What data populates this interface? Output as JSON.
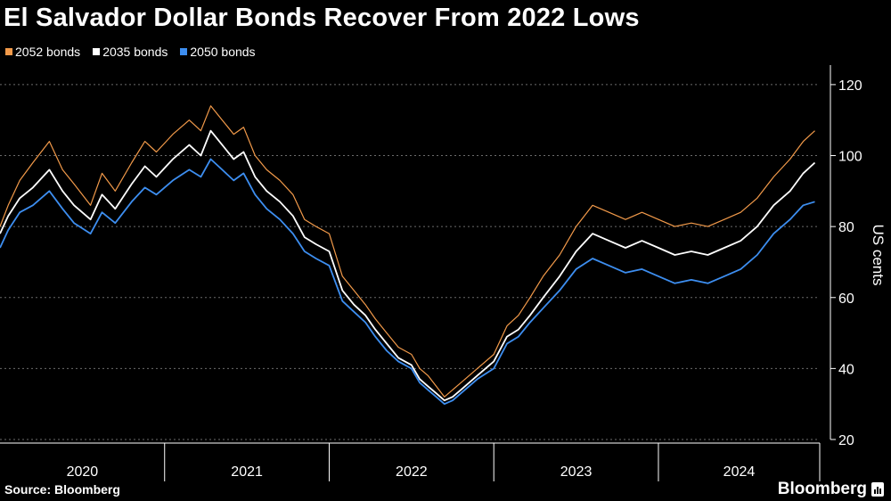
{
  "chart_data": {
    "type": "line",
    "title": "El Salvador Dollar Bonds Recover From 2022 Lows",
    "ylabel": "US cents",
    "xlabel": "",
    "ylim": [
      20,
      125
    ],
    "yticks": [
      "20",
      "40",
      "60",
      "80",
      "100",
      "120"
    ],
    "ytick_values": [
      20,
      40,
      60,
      80,
      100,
      120
    ],
    "years": [
      "2020",
      "2021",
      "2022",
      "2023",
      "2024"
    ],
    "xlim": [
      2020.0,
      2024.98
    ],
    "grid": true,
    "legend_position": "top-left",
    "series": [
      {
        "name": "2052 bonds",
        "color": "#f29a4a",
        "points": [
          [
            2020.0,
            80
          ],
          [
            2020.05,
            86
          ],
          [
            2020.12,
            93
          ],
          [
            2020.2,
            98
          ],
          [
            2020.3,
            104
          ],
          [
            2020.38,
            96
          ],
          [
            2020.45,
            92
          ],
          [
            2020.55,
            86
          ],
          [
            2020.62,
            95
          ],
          [
            2020.7,
            90
          ],
          [
            2020.8,
            98
          ],
          [
            2020.88,
            104
          ],
          [
            2020.95,
            101
          ],
          [
            2021.05,
            106
          ],
          [
            2021.15,
            110
          ],
          [
            2021.22,
            107
          ],
          [
            2021.28,
            114
          ],
          [
            2021.35,
            110
          ],
          [
            2021.42,
            106
          ],
          [
            2021.48,
            108
          ],
          [
            2021.55,
            100
          ],
          [
            2021.62,
            96
          ],
          [
            2021.7,
            93
          ],
          [
            2021.78,
            89
          ],
          [
            2021.85,
            82
          ],
          [
            2021.92,
            80
          ],
          [
            2022.0,
            78
          ],
          [
            2022.08,
            66
          ],
          [
            2022.15,
            62
          ],
          [
            2022.22,
            58
          ],
          [
            2022.28,
            54
          ],
          [
            2022.35,
            50
          ],
          [
            2022.42,
            46
          ],
          [
            2022.5,
            44
          ],
          [
            2022.55,
            40
          ],
          [
            2022.6,
            38
          ],
          [
            2022.65,
            35
          ],
          [
            2022.7,
            32
          ],
          [
            2022.75,
            34
          ],
          [
            2022.8,
            36
          ],
          [
            2022.9,
            40
          ],
          [
            2023.0,
            44
          ],
          [
            2023.08,
            52
          ],
          [
            2023.15,
            55
          ],
          [
            2023.22,
            60
          ],
          [
            2023.3,
            66
          ],
          [
            2023.4,
            72
          ],
          [
            2023.5,
            80
          ],
          [
            2023.6,
            86
          ],
          [
            2023.7,
            84
          ],
          [
            2023.8,
            82
          ],
          [
            2023.9,
            84
          ],
          [
            2024.0,
            82
          ],
          [
            2024.1,
            80
          ],
          [
            2024.2,
            81
          ],
          [
            2024.3,
            80
          ],
          [
            2024.4,
            82
          ],
          [
            2024.5,
            84
          ],
          [
            2024.6,
            88
          ],
          [
            2024.7,
            94
          ],
          [
            2024.8,
            99
          ],
          [
            2024.88,
            104
          ],
          [
            2024.95,
            107
          ]
        ]
      },
      {
        "name": "2035 bonds",
        "color": "#ffffff",
        "points": [
          [
            2020.0,
            78
          ],
          [
            2020.05,
            83
          ],
          [
            2020.12,
            88
          ],
          [
            2020.2,
            91
          ],
          [
            2020.3,
            96
          ],
          [
            2020.38,
            90
          ],
          [
            2020.45,
            86
          ],
          [
            2020.55,
            82
          ],
          [
            2020.62,
            89
          ],
          [
            2020.7,
            85
          ],
          [
            2020.8,
            92
          ],
          [
            2020.88,
            97
          ],
          [
            2020.95,
            94
          ],
          [
            2021.05,
            99
          ],
          [
            2021.15,
            103
          ],
          [
            2021.22,
            100
          ],
          [
            2021.28,
            107
          ],
          [
            2021.35,
            103
          ],
          [
            2021.42,
            99
          ],
          [
            2021.48,
            101
          ],
          [
            2021.55,
            94
          ],
          [
            2021.62,
            90
          ],
          [
            2021.7,
            87
          ],
          [
            2021.78,
            83
          ],
          [
            2021.85,
            77
          ],
          [
            2021.92,
            75
          ],
          [
            2022.0,
            73
          ],
          [
            2022.08,
            62
          ],
          [
            2022.15,
            58
          ],
          [
            2022.22,
            55
          ],
          [
            2022.28,
            51
          ],
          [
            2022.35,
            47
          ],
          [
            2022.42,
            43
          ],
          [
            2022.5,
            41
          ],
          [
            2022.55,
            37
          ],
          [
            2022.6,
            35
          ],
          [
            2022.65,
            33
          ],
          [
            2022.7,
            31
          ],
          [
            2022.75,
            32
          ],
          [
            2022.8,
            34
          ],
          [
            2022.9,
            38
          ],
          [
            2023.0,
            42
          ],
          [
            2023.08,
            49
          ],
          [
            2023.15,
            51
          ],
          [
            2023.22,
            55
          ],
          [
            2023.3,
            60
          ],
          [
            2023.4,
            66
          ],
          [
            2023.5,
            73
          ],
          [
            2023.6,
            78
          ],
          [
            2023.7,
            76
          ],
          [
            2023.8,
            74
          ],
          [
            2023.9,
            76
          ],
          [
            2024.0,
            74
          ],
          [
            2024.1,
            72
          ],
          [
            2024.2,
            73
          ],
          [
            2024.3,
            72
          ],
          [
            2024.4,
            74
          ],
          [
            2024.5,
            76
          ],
          [
            2024.6,
            80
          ],
          [
            2024.7,
            86
          ],
          [
            2024.8,
            90
          ],
          [
            2024.88,
            95
          ],
          [
            2024.95,
            98
          ]
        ]
      },
      {
        "name": "2050 bonds",
        "color": "#3d8ef0",
        "points": [
          [
            2020.0,
            74
          ],
          [
            2020.05,
            79
          ],
          [
            2020.12,
            84
          ],
          [
            2020.2,
            86
          ],
          [
            2020.3,
            90
          ],
          [
            2020.38,
            85
          ],
          [
            2020.45,
            81
          ],
          [
            2020.55,
            78
          ],
          [
            2020.62,
            84
          ],
          [
            2020.7,
            81
          ],
          [
            2020.8,
            87
          ],
          [
            2020.88,
            91
          ],
          [
            2020.95,
            89
          ],
          [
            2021.05,
            93
          ],
          [
            2021.15,
            96
          ],
          [
            2021.22,
            94
          ],
          [
            2021.28,
            99
          ],
          [
            2021.35,
            96
          ],
          [
            2021.42,
            93
          ],
          [
            2021.48,
            95
          ],
          [
            2021.55,
            89
          ],
          [
            2021.62,
            85
          ],
          [
            2021.7,
            82
          ],
          [
            2021.78,
            78
          ],
          [
            2021.85,
            73
          ],
          [
            2021.92,
            71
          ],
          [
            2022.0,
            69
          ],
          [
            2022.08,
            59
          ],
          [
            2022.15,
            56
          ],
          [
            2022.22,
            53
          ],
          [
            2022.28,
            49
          ],
          [
            2022.35,
            45
          ],
          [
            2022.42,
            42
          ],
          [
            2022.5,
            40
          ],
          [
            2022.55,
            36
          ],
          [
            2022.6,
            34
          ],
          [
            2022.65,
            32
          ],
          [
            2022.7,
            30
          ],
          [
            2022.75,
            31
          ],
          [
            2022.8,
            33
          ],
          [
            2022.9,
            37
          ],
          [
            2023.0,
            40
          ],
          [
            2023.08,
            47
          ],
          [
            2023.15,
            49
          ],
          [
            2023.22,
            53
          ],
          [
            2023.3,
            57
          ],
          [
            2023.4,
            62
          ],
          [
            2023.5,
            68
          ],
          [
            2023.6,
            71
          ],
          [
            2023.7,
            69
          ],
          [
            2023.8,
            67
          ],
          [
            2023.9,
            68
          ],
          [
            2024.0,
            66
          ],
          [
            2024.1,
            64
          ],
          [
            2024.2,
            65
          ],
          [
            2024.3,
            64
          ],
          [
            2024.4,
            66
          ],
          [
            2024.5,
            68
          ],
          [
            2024.6,
            72
          ],
          [
            2024.7,
            78
          ],
          [
            2024.8,
            82
          ],
          [
            2024.88,
            86
          ],
          [
            2024.95,
            87
          ]
        ]
      }
    ]
  },
  "header": {
    "title": "El Salvador Dollar Bonds Recover From 2022 Lows"
  },
  "legend": [
    {
      "label": "2052 bonds",
      "color": "#f29a4a"
    },
    {
      "label": "2035 bonds",
      "color": "#ffffff"
    },
    {
      "label": "2050 bonds",
      "color": "#3d8ef0"
    }
  ],
  "footer": {
    "source": "Source: Bloomberg",
    "brand": "Bloomberg"
  }
}
